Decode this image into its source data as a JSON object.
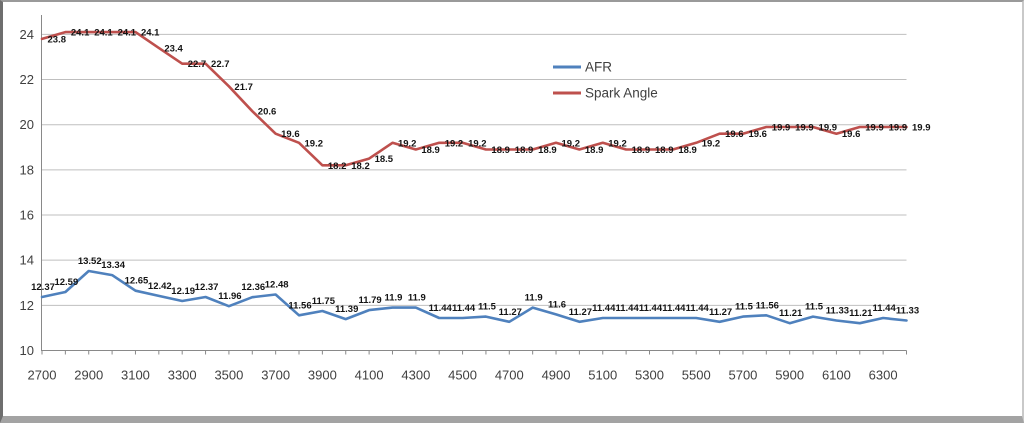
{
  "chart_data": {
    "type": "line",
    "x": [
      2700,
      2800,
      2900,
      3000,
      3100,
      3200,
      3300,
      3400,
      3500,
      3600,
      3700,
      3800,
      3900,
      4000,
      4100,
      4200,
      4300,
      4400,
      4500,
      4600,
      4700,
      4800,
      4900,
      5000,
      5100,
      5200,
      5300,
      5400,
      5500,
      5600,
      5700,
      5800,
      5900,
      6000,
      6100,
      6200,
      6300,
      6400
    ],
    "x_label_interval": 200,
    "series": [
      {
        "name": "AFR",
        "color": "#4F81BD",
        "label_position": "above",
        "values": [
          12.37,
          12.59,
          13.52,
          13.34,
          12.65,
          12.42,
          12.19,
          12.37,
          11.96,
          12.36,
          12.48,
          11.56,
          11.75,
          11.39,
          11.79,
          11.9,
          11.9,
          11.44,
          11.44,
          11.5,
          11.27,
          11.9,
          11.6,
          11.27,
          11.44,
          11.44,
          11.44,
          11.44,
          11.44,
          11.27,
          11.5,
          11.56,
          11.21,
          11.5,
          11.33,
          11.21,
          11.44,
          11.33
        ]
      },
      {
        "name": "Spark Angle",
        "color": "#BE504D",
        "label_position": "right",
        "values": [
          23.8,
          24.1,
          24.1,
          24.1,
          24.1,
          23.4,
          22.7,
          22.7,
          21.7,
          20.6,
          19.6,
          19.2,
          18.2,
          18.2,
          18.5,
          19.2,
          18.9,
          19.2,
          19.2,
          18.9,
          18.9,
          18.9,
          19.2,
          18.9,
          19.2,
          18.9,
          18.9,
          18.9,
          19.2,
          19.6,
          19.6,
          19.9,
          19.9,
          19.9,
          19.6,
          19.9,
          19.9,
          19.9
        ]
      }
    ],
    "title": "",
    "xlabel": "",
    "ylabel": "",
    "ylim": [
      10,
      25
    ],
    "yticks": [
      10,
      12,
      14,
      16,
      18,
      20,
      22,
      24
    ],
    "grid": true,
    "data_labels": true,
    "legend_position": "top-center",
    "colors": {
      "gridline": "#bfbfbf",
      "axis": "#898989",
      "background": "#ffffff"
    }
  }
}
